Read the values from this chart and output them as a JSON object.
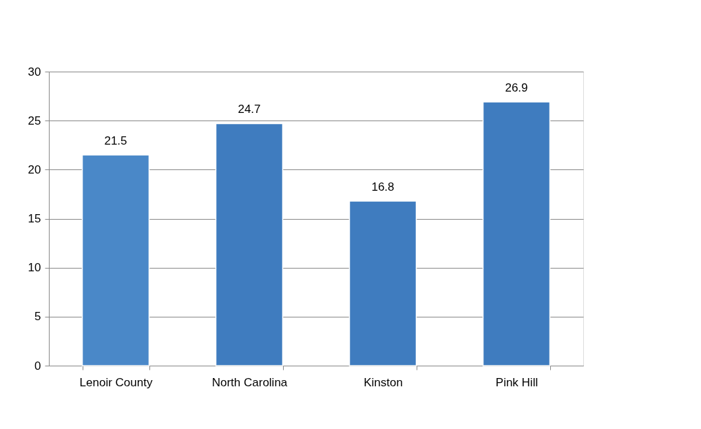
{
  "chart_data": {
    "type": "bar",
    "categories": [
      "Lenoir County",
      "North Carolina",
      "Kinston",
      "Pink Hill"
    ],
    "values": [
      21.5,
      24.7,
      16.8,
      26.9
    ],
    "colors": [
      "#4a88c8",
      "#3f7cbf",
      "#3f7cbf",
      "#3f7cbf"
    ],
    "ylim": [
      0,
      30
    ],
    "yticks": [
      0,
      5,
      10,
      15,
      20,
      25,
      30
    ],
    "grid": "y",
    "data_labels": true
  }
}
